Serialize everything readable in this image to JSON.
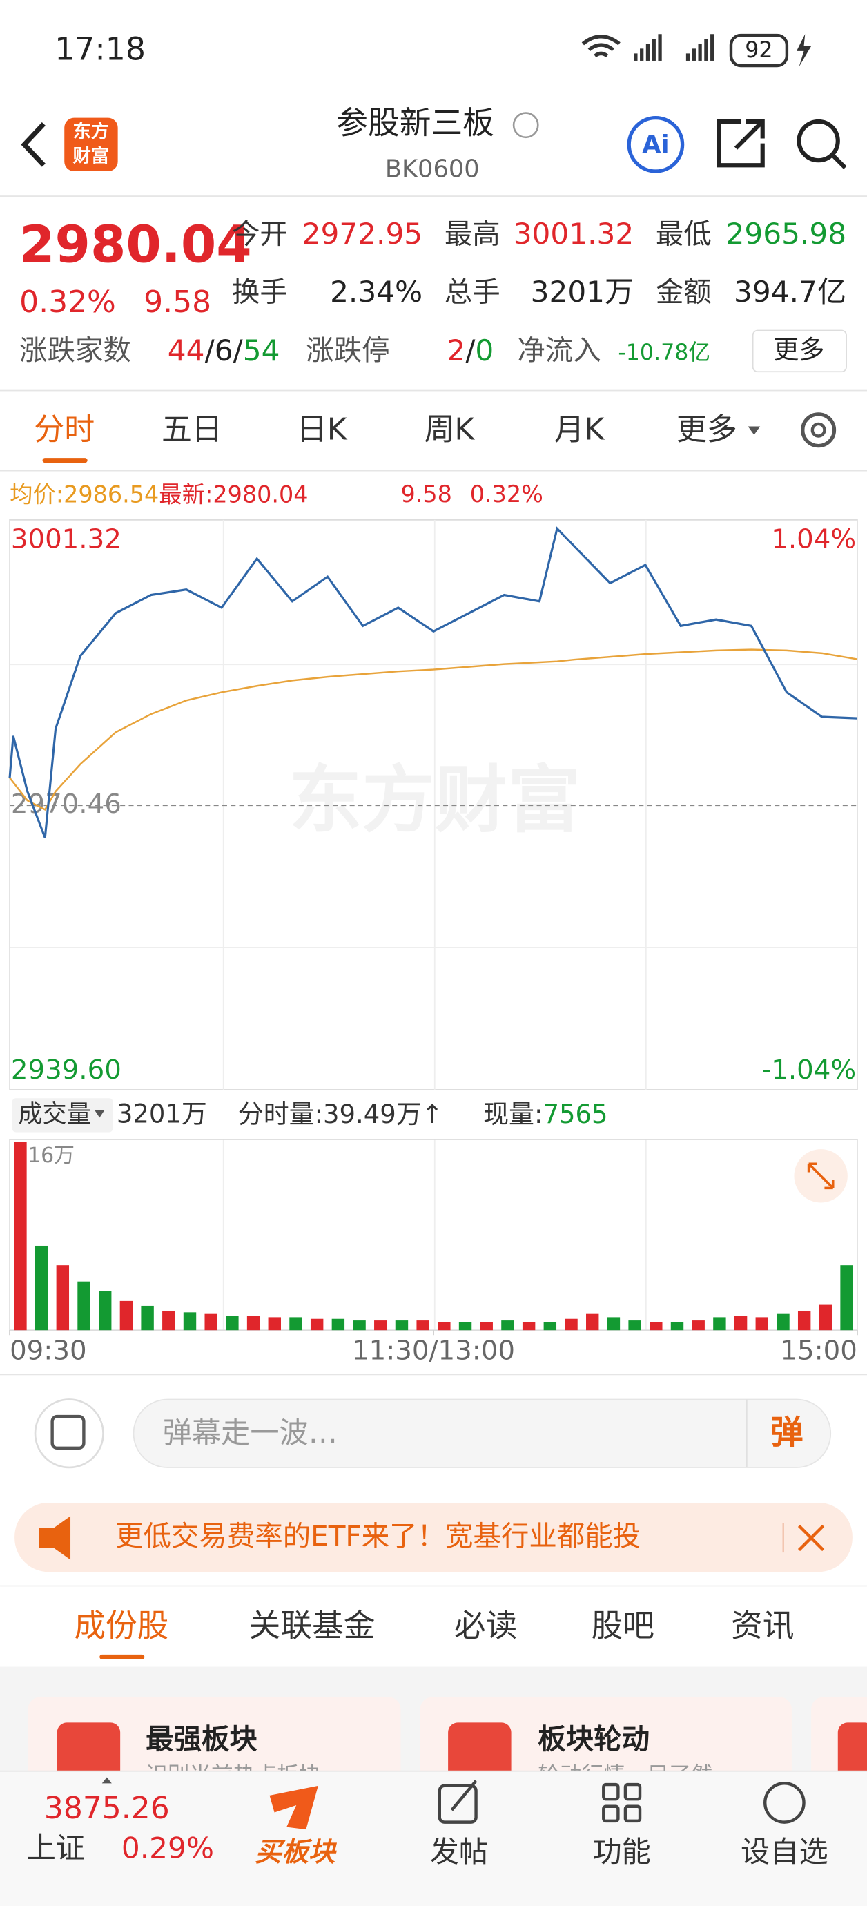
{
  "status": {
    "time": "17:18",
    "battery": "92"
  },
  "header": {
    "logo": [
      "东方",
      "财富"
    ],
    "title": "参股新三板",
    "code": "BK0600"
  },
  "quote": {
    "price": "2980.04",
    "pct": "0.32%",
    "change": "9.58",
    "stats": [
      [
        "今开",
        "2972.95"
      ],
      [
        "最高",
        "3001.32"
      ],
      [
        "最低",
        "2965.98"
      ],
      [
        "换手",
        "2.34%"
      ],
      [
        "总手",
        "3201万"
      ],
      [
        "金额",
        "394.7亿"
      ]
    ],
    "breadth_label": "涨跌家数",
    "up": "44",
    "sep": "/",
    "flat": "6",
    "down": "54",
    "limit_label": "涨跌停",
    "limit_up": "2",
    "limit_down": "0",
    "flow_label": "净流入",
    "flow": "-10.78亿",
    "more": "更多"
  },
  "tabs": [
    "分时",
    "五日",
    "日K",
    "周K",
    "月K",
    "更多"
  ],
  "legend": {
    "avg_label": "均价:",
    "avg": "2986.54",
    "last_label": "最新:",
    "last": "2980.04",
    "change": "9.58",
    "pct": "0.32%"
  },
  "chart_data": {
    "type": "line",
    "watermark": "东方财富",
    "x": [
      0,
      1,
      5,
      10,
      13,
      20,
      30,
      40,
      50,
      60,
      70,
      80,
      90,
      100,
      110,
      120,
      130,
      140,
      150,
      155,
      160,
      170,
      180,
      190,
      200,
      210,
      220,
      230,
      240
    ],
    "xlim": [
      0,
      240
    ],
    "xticks": [
      {
        "value": 0,
        "label": "09:30"
      },
      {
        "value": 120,
        "label": "11:30/13:00"
      },
      {
        "value": 240,
        "label": "15:00"
      }
    ],
    "ylim": [
      2939.6,
      3001.32
    ],
    "yticks": [
      3001.32,
      2970.46,
      {
        "value": 2939.6,
        "label": "2939.60"
      }
    ],
    "pct_labels": [
      "1.04%",
      "-1.04%"
    ],
    "series": [
      {
        "name": "最新",
        "color": "#2f66a8",
        "values": [
          2973.5,
          2978.1,
          2972.0,
          2966.9,
          2978.9,
          2986.9,
          2991.6,
          2993.6,
          2994.2,
          2992.2,
          2997.6,
          2992.9,
          2995.6,
          2990.2,
          2992.2,
          2989.6,
          2991.6,
          2993.6,
          2992.9,
          3000.9,
          2998.9,
          2994.9,
          2996.9,
          2990.2,
          2990.9,
          2990.2,
          2982.9,
          2980.2,
          2980.04
        ]
      },
      {
        "name": "均价",
        "color": "#e8a33a",
        "values": [
          2973.5,
          2973.0,
          2971.0,
          2970.0,
          2972.0,
          2975.0,
          2978.5,
          2980.5,
          2982.0,
          2982.9,
          2983.6,
          2984.2,
          2984.6,
          2984.9,
          2985.2,
          2985.4,
          2985.7,
          2986.0,
          2986.2,
          2986.3,
          2986.5,
          2986.8,
          2987.1,
          2987.3,
          2987.5,
          2987.6,
          2987.5,
          2987.2,
          2986.54
        ]
      }
    ]
  },
  "volume": {
    "type": "bar",
    "label": "成交量",
    "total": "3201万",
    "minute_label": "分时量:",
    "minute": "39.49万↑",
    "now_label": "现量:",
    "now": "7565",
    "max_label": "116万",
    "ylim": [
      0,
      116
    ],
    "up_color": "#e0262b",
    "down_color": "#139a32",
    "values": [
      116,
      52,
      40,
      30,
      24,
      18,
      15,
      12,
      11,
      10,
      9,
      9,
      8,
      8,
      7,
      7,
      6,
      6,
      6,
      6,
      5,
      5,
      5,
      6,
      5,
      5,
      7,
      10,
      8,
      6,
      5,
      5,
      6,
      8,
      9,
      8,
      10,
      12,
      16,
      40
    ],
    "up": [
      true,
      false,
      true,
      false,
      false,
      true,
      false,
      true,
      false,
      true,
      false,
      true,
      true,
      false,
      true,
      false,
      false,
      true,
      false,
      true,
      true,
      false,
      true,
      false,
      true,
      false,
      true,
      true,
      false,
      false,
      true,
      false,
      true,
      false,
      true,
      true,
      false,
      true,
      true,
      false
    ]
  },
  "comment": {
    "placeholder": "弹幕走一波…",
    "button": "弹"
  },
  "banner": {
    "text": "更低交易费率的ETF来了！宽基行业都能投"
  },
  "subtabs": [
    "成份股",
    "关联基金",
    "必读",
    "股吧",
    "资讯"
  ],
  "cards": [
    {
      "title": "最强板块",
      "desc": "识别当前热点板块"
    },
    {
      "title": "板块轮动",
      "desc": "轮动行情一目了然"
    }
  ],
  "nav": {
    "index_value": "3875.26",
    "index_name": "上证",
    "index_pct": "0.29%",
    "items": [
      "买板块",
      "发帖",
      "功能",
      "设自选"
    ]
  }
}
